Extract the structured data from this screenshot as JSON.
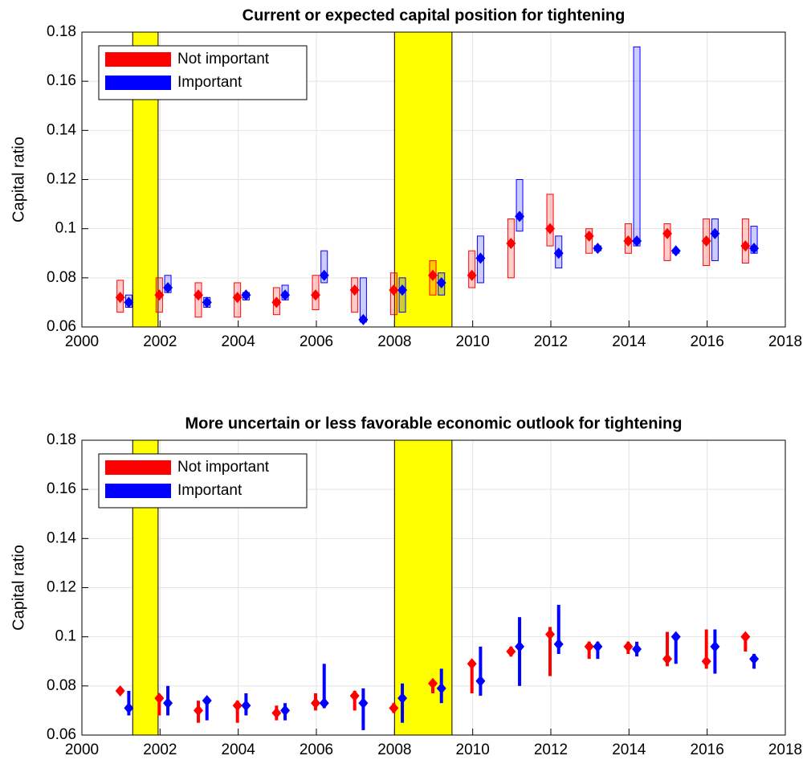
{
  "chart_data": [
    {
      "type": "range",
      "title": "Current or expected capital position for tightening",
      "y_label": "Capital ratio",
      "box_style": "outline",
      "grid": true,
      "legend": "upper left",
      "xlim": [
        2000,
        2018
      ],
      "xticks": [
        2000,
        2002,
        2004,
        2006,
        2008,
        2010,
        2012,
        2014,
        2016,
        2018
      ],
      "ylim": [
        0.06,
        0.18
      ],
      "yticks": [
        0.06,
        0.08,
        0.1,
        0.12,
        0.14,
        0.16,
        0.18
      ],
      "shaded_regions": [
        [
          2001.3,
          2001.95
        ],
        [
          2008.0,
          2009.47
        ]
      ],
      "shade_color": "#ffff00",
      "series": [
        {
          "name": "Not important",
          "color": "#ff0000",
          "x": [
            2000.98,
            2001.98,
            2002.98,
            2003.98,
            2004.98,
            2005.98,
            2006.98,
            2007.98,
            2008.98,
            2009.98,
            2010.98,
            2011.98,
            2012.98,
            2013.98,
            2014.98,
            2015.98,
            2016.98
          ],
          "values": [
            0.072,
            0.073,
            0.073,
            0.072,
            0.07,
            0.073,
            0.075,
            0.075,
            0.081,
            0.081,
            0.094,
            0.1,
            0.097,
            0.095,
            0.098,
            0.095,
            0.093
          ],
          "low": [
            0.066,
            0.066,
            0.064,
            0.064,
            0.065,
            0.067,
            0.066,
            0.065,
            0.073,
            0.076,
            0.08,
            0.093,
            0.09,
            0.09,
            0.087,
            0.085,
            0.086
          ],
          "high": [
            0.079,
            0.08,
            0.078,
            0.078,
            0.076,
            0.081,
            0.08,
            0.082,
            0.087,
            0.091,
            0.104,
            0.114,
            0.1,
            0.102,
            0.102,
            0.104,
            0.104
          ]
        },
        {
          "name": "Important",
          "color": "#0000ff",
          "x": [
            2001.2,
            2002.2,
            2003.2,
            2004.2,
            2005.2,
            2006.2,
            2007.2,
            2008.2,
            2009.2,
            2010.2,
            2011.2,
            2012.2,
            2013.2,
            2014.2,
            2015.2,
            2016.2,
            2017.2
          ],
          "values": [
            0.07,
            0.076,
            0.07,
            0.073,
            0.073,
            0.081,
            0.063,
            0.075,
            0.078,
            0.088,
            0.105,
            0.09,
            0.092,
            0.095,
            0.091,
            0.098,
            0.092
          ],
          "low": [
            0.068,
            0.074,
            0.068,
            0.071,
            0.071,
            0.078,
            0.062,
            0.066,
            0.073,
            0.078,
            0.099,
            0.084,
            0.091,
            0.093,
            0.09,
            0.087,
            0.09
          ],
          "high": [
            0.073,
            0.081,
            0.072,
            0.074,
            0.077,
            0.091,
            0.08,
            0.08,
            0.082,
            0.097,
            0.12,
            0.097,
            0.093,
            0.174,
            0.091,
            0.104,
            0.101
          ]
        }
      ]
    },
    {
      "type": "range",
      "title": "More uncertain or less favorable economic outlook for tightening",
      "y_label": "Capital ratio",
      "box_style": "filled",
      "grid": true,
      "legend": "upper left",
      "xlim": [
        2000,
        2018
      ],
      "xticks": [
        2000,
        2002,
        2004,
        2006,
        2008,
        2010,
        2012,
        2014,
        2016,
        2018
      ],
      "ylim": [
        0.06,
        0.18
      ],
      "yticks": [
        0.06,
        0.08,
        0.1,
        0.12,
        0.14,
        0.16,
        0.18
      ],
      "shaded_regions": [
        [
          2001.3,
          2001.95
        ],
        [
          2008.0,
          2009.47
        ]
      ],
      "shade_color": "#ffff00",
      "series": [
        {
          "name": "Not important",
          "color": "#ff0000",
          "x": [
            2000.98,
            2001.98,
            2002.98,
            2003.98,
            2004.98,
            2005.98,
            2006.98,
            2007.98,
            2008.98,
            2009.98,
            2010.98,
            2011.98,
            2012.98,
            2013.98,
            2014.98,
            2015.98,
            2016.98
          ],
          "values": [
            0.078,
            0.075,
            0.07,
            0.072,
            0.069,
            0.073,
            0.076,
            0.071,
            0.081,
            0.089,
            0.094,
            0.101,
            0.096,
            0.096,
            0.091,
            0.09,
            0.1
          ],
          "low": [
            0.077,
            0.068,
            0.065,
            0.065,
            0.066,
            0.07,
            0.07,
            0.069,
            0.077,
            0.077,
            0.092,
            0.084,
            0.091,
            0.093,
            0.088,
            0.087,
            0.094
          ],
          "high": [
            0.079,
            0.076,
            0.074,
            0.074,
            0.072,
            0.077,
            0.078,
            0.073,
            0.082,
            0.089,
            0.096,
            0.104,
            0.098,
            0.098,
            0.102,
            0.103,
            0.101
          ]
        },
        {
          "name": "Important",
          "color": "#0000ff",
          "x": [
            2001.2,
            2002.2,
            2003.2,
            2004.2,
            2005.2,
            2006.2,
            2007.2,
            2008.2,
            2009.2,
            2010.2,
            2011.2,
            2012.2,
            2013.2,
            2014.2,
            2015.2,
            2016.2,
            2017.2
          ],
          "values": [
            0.071,
            0.073,
            0.074,
            0.072,
            0.07,
            0.073,
            0.073,
            0.075,
            0.079,
            0.082,
            0.096,
            0.097,
            0.096,
            0.095,
            0.1,
            0.096,
            0.091
          ],
          "low": [
            0.068,
            0.068,
            0.066,
            0.068,
            0.066,
            0.071,
            0.062,
            0.065,
            0.073,
            0.076,
            0.08,
            0.093,
            0.091,
            0.092,
            0.089,
            0.085,
            0.087
          ],
          "high": [
            0.078,
            0.08,
            0.075,
            0.077,
            0.073,
            0.089,
            0.079,
            0.081,
            0.087,
            0.096,
            0.108,
            0.113,
            0.098,
            0.098,
            0.101,
            0.103,
            0.093
          ]
        }
      ]
    }
  ]
}
